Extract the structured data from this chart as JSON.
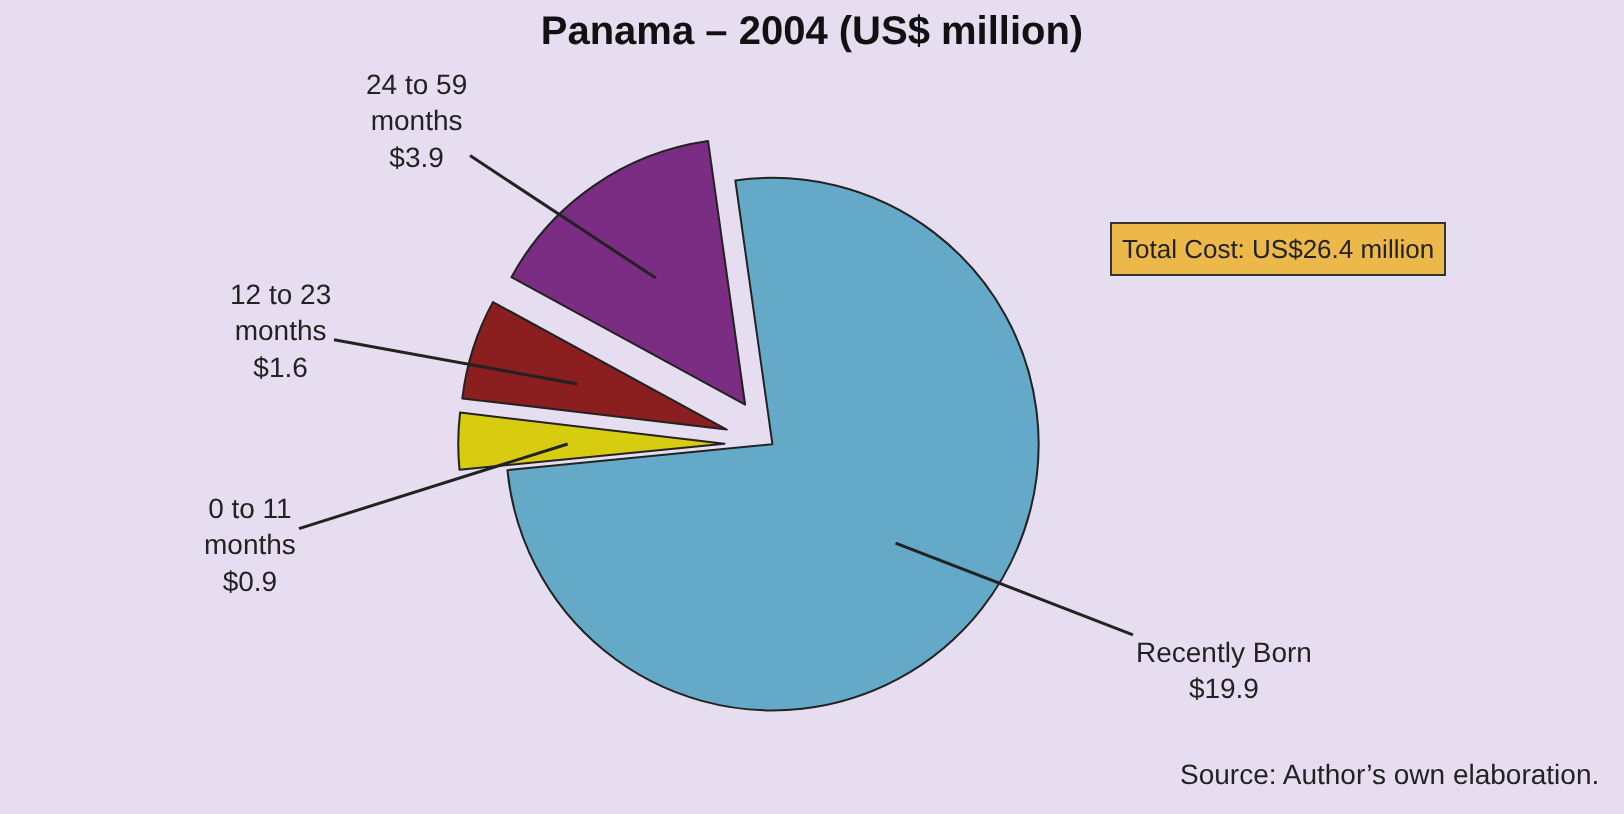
{
  "chart_data": {
    "type": "pie",
    "title": "Panama – 2004 (US$ million)",
    "categories": [
      "Recently Born",
      "0 to 11 months",
      "12 to 23 months",
      "24 to 59 months"
    ],
    "values": [
      19.9,
      0.9,
      1.6,
      3.9
    ],
    "value_labels": [
      "$19.9",
      "$0.9",
      "$1.6",
      "$3.9"
    ],
    "colors": [
      "#64aac8",
      "#d8cc10",
      "#8b1e1e",
      "#7b2d84"
    ],
    "legend": false,
    "annotations": [
      "Total Cost: US$26.4 million",
      "Source: Author’s own elaboration."
    ]
  }
}
